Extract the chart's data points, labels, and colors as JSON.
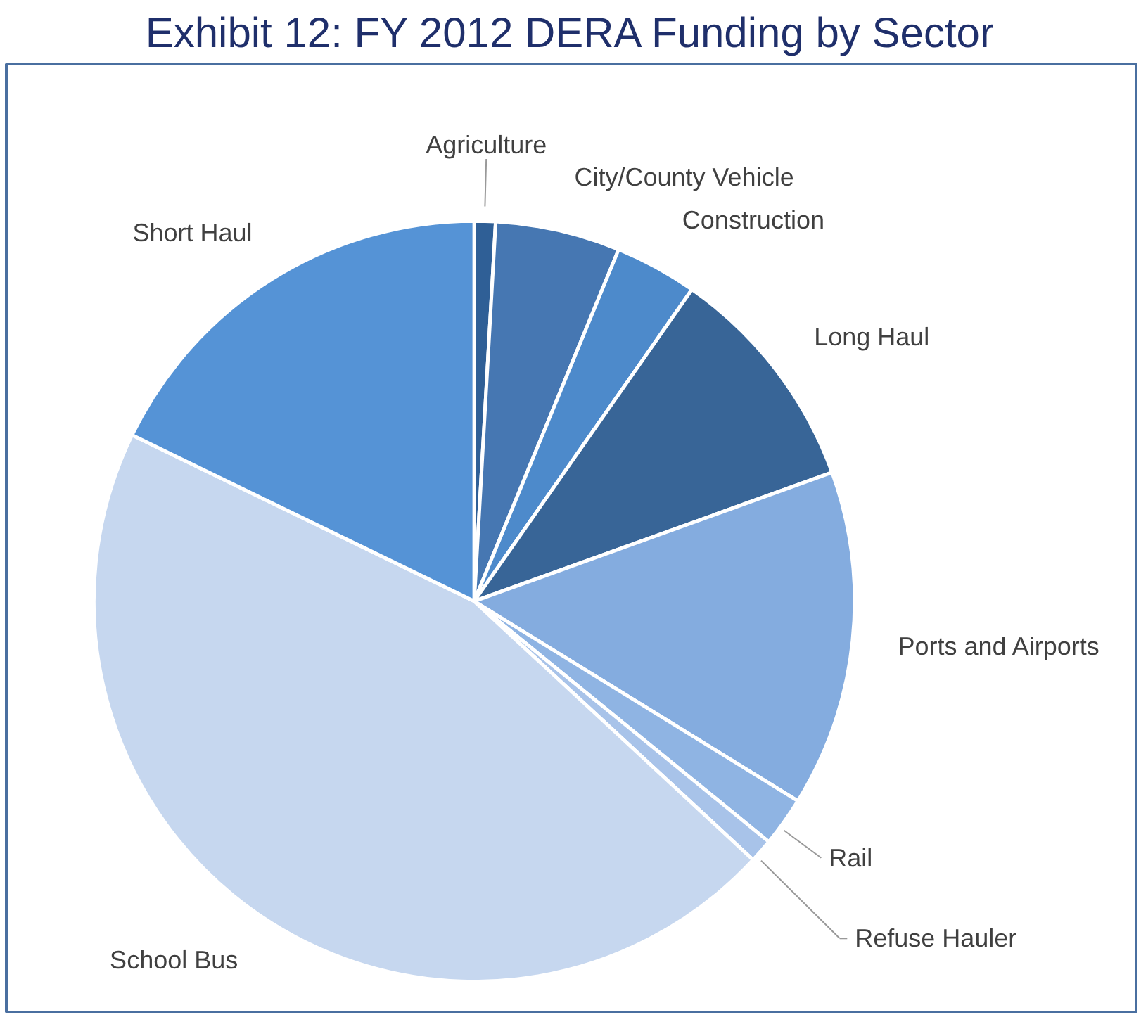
{
  "chart_data": {
    "type": "pie",
    "title": "Exhibit 12: FY 2012 DERA Funding by Sector",
    "categories": [
      "Agriculture",
      "City/County Vehicle",
      "Construction",
      "Long Haul",
      "Ports and Airports",
      "Rail",
      "Refuse Hauler",
      "School Bus",
      "Short Haul"
    ],
    "values": [
      0.9,
      5.3,
      3.5,
      9.8,
      14.3,
      2.1,
      1.0,
      45.3,
      17.8
    ],
    "colors": [
      "#2f5f96",
      "#4677b2",
      "#4d8acb",
      "#386597",
      "#84acdf",
      "#8fb4e3",
      "#a8c3e9",
      "#c6d7ef",
      "#5593d6"
    ]
  }
}
